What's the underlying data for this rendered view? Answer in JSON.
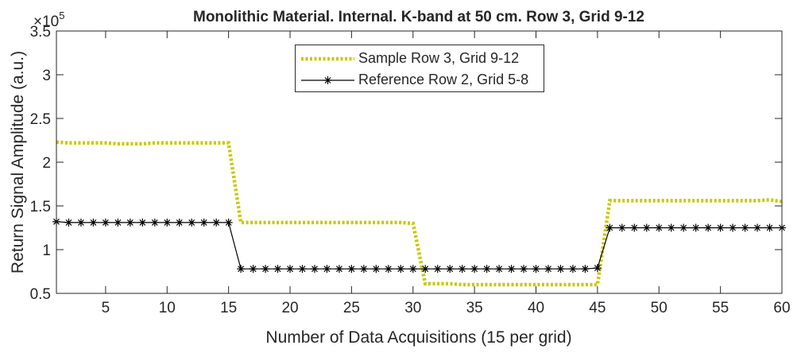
{
  "chart_data": {
    "type": "line",
    "title": "Monolithic Material. Internal. K-band at 50 cm. Row 3, Grid 9-12",
    "xlabel": "Number of Data Acquisitions (15 per grid)",
    "ylabel": "Return Signal Amplitude (a.u.)",
    "y_exponent_label": "×10",
    "y_exponent_power": "5",
    "xlim": [
      1,
      60
    ],
    "ylim": [
      0.5,
      3.5
    ],
    "y_scale_factor": 100000,
    "x_ticks": [
      5,
      10,
      15,
      20,
      25,
      30,
      35,
      40,
      45,
      50,
      55,
      60
    ],
    "x_tick_labels": [
      "5",
      "10",
      "15",
      "20",
      "25",
      "30",
      "35",
      "40",
      "45",
      "50",
      "55",
      "60"
    ],
    "y_ticks": [
      0.5,
      1,
      1.5,
      2,
      2.5,
      3,
      3.5
    ],
    "y_tick_labels": [
      "0.5",
      "1",
      "1.5",
      "2",
      "2.5",
      "3",
      "3.5"
    ],
    "grid": false,
    "legend_position": "top-center",
    "x": [
      1,
      2,
      3,
      4,
      5,
      6,
      7,
      8,
      9,
      10,
      11,
      12,
      13,
      14,
      15,
      16,
      17,
      18,
      19,
      20,
      21,
      22,
      23,
      24,
      25,
      26,
      27,
      28,
      29,
      30,
      31,
      32,
      33,
      34,
      35,
      36,
      37,
      38,
      39,
      40,
      41,
      42,
      43,
      44,
      45,
      46,
      47,
      48,
      49,
      50,
      51,
      52,
      53,
      54,
      55,
      56,
      57,
      58,
      59,
      60
    ],
    "series": [
      {
        "name": "Sample Row 3, Grid 9-12",
        "color": "#c8c80a",
        "style": "dotted-thick",
        "values": [
          2.23,
          2.22,
          2.22,
          2.22,
          2.22,
          2.21,
          2.21,
          2.21,
          2.22,
          2.22,
          2.22,
          2.22,
          2.22,
          2.22,
          2.22,
          1.31,
          1.31,
          1.31,
          1.31,
          1.31,
          1.31,
          1.31,
          1.31,
          1.31,
          1.31,
          1.31,
          1.31,
          1.31,
          1.31,
          1.3,
          0.61,
          0.61,
          0.61,
          0.6,
          0.6,
          0.6,
          0.6,
          0.6,
          0.6,
          0.6,
          0.6,
          0.6,
          0.6,
          0.6,
          0.6,
          1.56,
          1.56,
          1.56,
          1.56,
          1.56,
          1.56,
          1.56,
          1.56,
          1.56,
          1.56,
          1.56,
          1.56,
          1.56,
          1.57,
          1.55
        ]
      },
      {
        "name": "Reference Row 2, Grid 5-8",
        "color": "#000000",
        "style": "solid-asterisk",
        "values": [
          1.32,
          1.31,
          1.31,
          1.31,
          1.31,
          1.31,
          1.31,
          1.31,
          1.31,
          1.31,
          1.31,
          1.31,
          1.31,
          1.31,
          1.31,
          0.78,
          0.78,
          0.78,
          0.78,
          0.78,
          0.78,
          0.78,
          0.78,
          0.78,
          0.78,
          0.78,
          0.78,
          0.78,
          0.78,
          0.78,
          0.78,
          0.78,
          0.78,
          0.78,
          0.78,
          0.78,
          0.78,
          0.78,
          0.78,
          0.78,
          0.78,
          0.78,
          0.78,
          0.78,
          0.79,
          1.25,
          1.25,
          1.25,
          1.25,
          1.25,
          1.25,
          1.25,
          1.25,
          1.25,
          1.25,
          1.25,
          1.25,
          1.25,
          1.25,
          1.25
        ]
      }
    ]
  }
}
